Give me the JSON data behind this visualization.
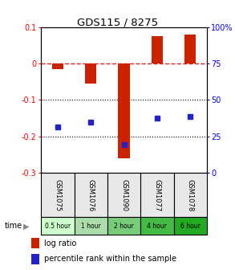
{
  "title": "GDS115 / 8275",
  "samples": [
    "GSM1075",
    "GSM1076",
    "GSM1090",
    "GSM1077",
    "GSM1078"
  ],
  "time_labels": [
    "0.5 hour",
    "1 hour",
    "2 hour",
    "4 hour",
    "6 hour"
  ],
  "time_colors": [
    "#ccffcc",
    "#aaddaa",
    "#77cc77",
    "#44bb44",
    "#22aa22"
  ],
  "log_ratio": [
    -0.015,
    -0.055,
    -0.26,
    0.075,
    0.08
  ],
  "percentile": [
    0.315,
    0.345,
    0.195,
    0.375,
    0.385
  ],
  "ylim_left": [
    -0.3,
    0.1
  ],
  "ylim_right": [
    0,
    100
  ],
  "bar_color": "#cc2200",
  "dot_color": "#2222cc",
  "bar_width": 0.35,
  "hline_color": "#dd2222",
  "bg_color": "#e8e8e8",
  "legend_bar_label": "log ratio",
  "legend_dot_label": "percentile rank within the sample"
}
